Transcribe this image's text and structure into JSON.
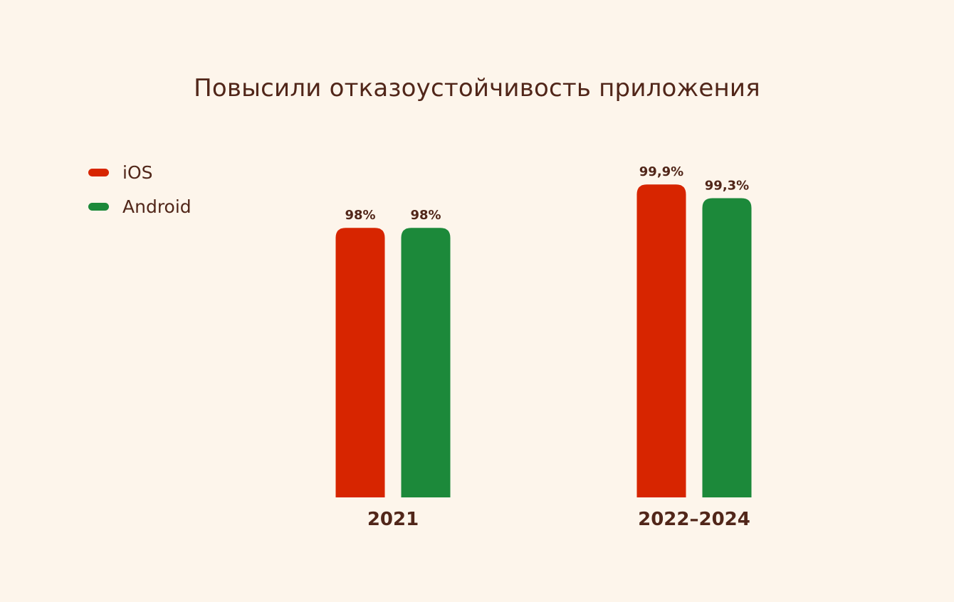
{
  "chart_data": {
    "type": "bar",
    "title": "Повысили отказоустойчивость приложения",
    "categories": [
      "2021",
      "2022–2024"
    ],
    "series": [
      {
        "name": "iOS",
        "color": "#d72500",
        "values": [
          98,
          99.9
        ],
        "labels": [
          "98%",
          "99,9%"
        ]
      },
      {
        "name": "Android",
        "color": "#1c893a",
        "values": [
          98,
          99.3
        ],
        "labels": [
          "98%",
          "99,3%"
        ]
      }
    ],
    "xlabel": "",
    "ylabel": "",
    "ylim": [
      86.2,
      100
    ],
    "grid": false,
    "legend": "top-left"
  }
}
